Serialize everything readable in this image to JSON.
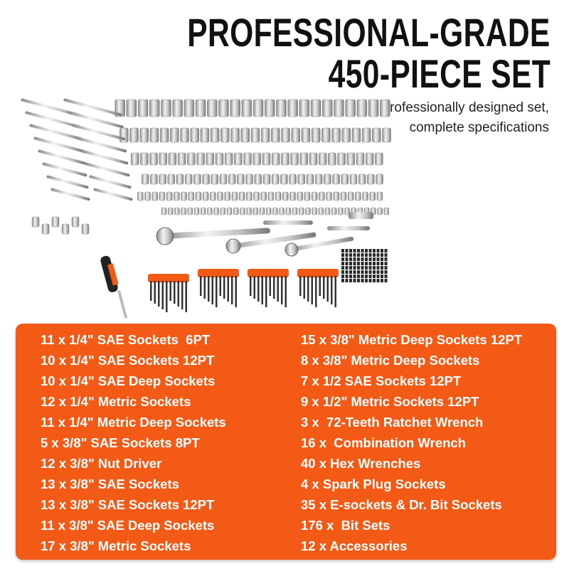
{
  "header": {
    "title_line1": "PROFESSIONAL-GRADE",
    "title_line2": "450-PIECE SET",
    "subtitle_line1": "Professionally designed set,",
    "subtitle_line2": "complete specifications"
  },
  "colors": {
    "accent": "#F25A16",
    "text_on_accent": "#FFFFFF",
    "title": "#111111"
  },
  "product_image": "450-piece socket and tool set with wrenches, ratchets, hex keys and bit tray",
  "contents": {
    "left": [
      "11 x 1/4\" SAE Sockets  6PT",
      "10 x 1/4\" SAE Sockets 12PT",
      "10 x 1/4\" SAE Deep Sockets",
      "12 x 1/4\" Metric Sockets",
      "11 x 1/4\" Metric Deep Sockets",
      "5 x 3/8\" SAE Sockets 8PT",
      "12 x 3/8\" Nut Driver",
      "13 x 3/8\" SAE Sockets",
      "13 x 3/8\" SAE Sockets 12PT",
      "11 x 3/8\" SAE Deep Sockets",
      "17 x 3/8\" Metric Sockets"
    ],
    "right": [
      "15 x 3/8\" Metric Deep Sockets 12PT",
      "8 x 3/8\" Metric Deep Sockets",
      "7 x 1/2 SAE Sockets 12PT",
      "9 x 1/2\" Metric Sockets 12PT",
      "3 x  72-Teeth Ratchet Wrench",
      "16 x  Combination Wrench",
      "40 x Hex Wrenches",
      "4 x Spark Plug Sockets",
      "35 x E-sockets & Dr. Bit Sockets",
      "176 x  Bit Sets",
      "12 x Accessories"
    ]
  }
}
